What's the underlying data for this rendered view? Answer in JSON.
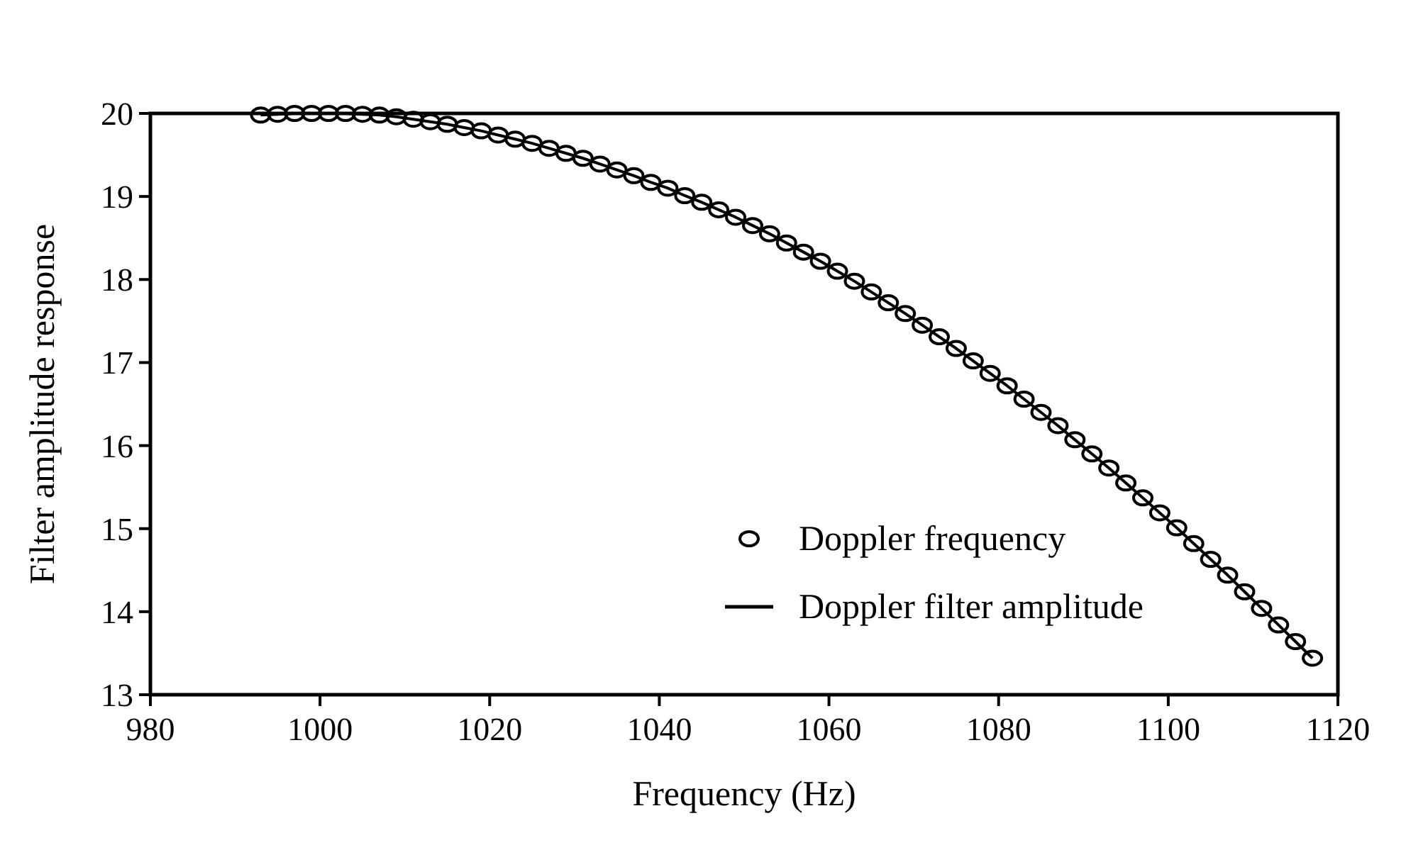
{
  "chart_data": {
    "type": "line",
    "xlabel": "Frequency (Hz)",
    "ylabel": "Filter amplitude response",
    "xlim": [
      980,
      1120
    ],
    "xticks": [
      980,
      1000,
      1020,
      1040,
      1060,
      1080,
      1100,
      1120
    ],
    "ylim": [
      13,
      20
    ],
    "yticks": [
      13,
      14,
      15,
      16,
      17,
      18,
      19,
      20
    ],
    "x": [
      993,
      995,
      997,
      999,
      1001,
      1003,
      1005,
      1007,
      1009,
      1011,
      1013,
      1015,
      1017,
      1019,
      1021,
      1023,
      1025,
      1027,
      1029,
      1031,
      1033,
      1035,
      1037,
      1039,
      1041,
      1043,
      1045,
      1047,
      1049,
      1051,
      1053,
      1055,
      1057,
      1059,
      1061,
      1063,
      1065,
      1067,
      1069,
      1071,
      1073,
      1075,
      1077,
      1079,
      1081,
      1083,
      1085,
      1087,
      1089,
      1091,
      1093,
      1095,
      1097,
      1099,
      1101,
      1103,
      1105,
      1107,
      1109,
      1111,
      1113,
      1115,
      1117
    ],
    "series": [
      {
        "name": "Doppler frequency",
        "type": "scatter",
        "marker": "circle",
        "color": "#000000",
        "values": [
          19.98,
          19.99,
          20,
          20,
          20,
          20,
          19.99,
          19.98,
          19.96,
          19.93,
          19.9,
          19.87,
          19.83,
          19.79,
          19.74,
          19.69,
          19.64,
          19.58,
          19.52,
          19.46,
          19.39,
          19.32,
          19.25,
          19.17,
          19.1,
          19.01,
          18.93,
          18.84,
          18.75,
          18.65,
          18.55,
          18.44,
          18.33,
          18.22,
          18.1,
          17.98,
          17.85,
          17.72,
          17.59,
          17.45,
          17.31,
          17.17,
          17.02,
          16.87,
          16.72,
          16.56,
          16.4,
          16.24,
          16.07,
          15.9,
          15.73,
          15.55,
          15.37,
          15.19,
          15.01,
          14.82,
          14.63,
          14.44,
          14.24,
          14.04,
          13.84,
          13.64,
          13.44
        ]
      },
      {
        "name": "Doppler filter amplitude",
        "line_style": "solid",
        "color": "#000000",
        "values": [
          19.98,
          19.99,
          20,
          20,
          20,
          20,
          19.99,
          19.98,
          19.96,
          19.93,
          19.9,
          19.87,
          19.83,
          19.79,
          19.74,
          19.69,
          19.64,
          19.58,
          19.52,
          19.46,
          19.39,
          19.32,
          19.25,
          19.17,
          19.1,
          19.01,
          18.93,
          18.84,
          18.75,
          18.65,
          18.55,
          18.44,
          18.33,
          18.22,
          18.1,
          17.98,
          17.85,
          17.72,
          17.59,
          17.45,
          17.31,
          17.17,
          17.02,
          16.87,
          16.72,
          16.56,
          16.4,
          16.24,
          16.07,
          15.9,
          15.73,
          15.55,
          15.37,
          15.19,
          15.01,
          14.82,
          14.63,
          14.44,
          14.24,
          14.04,
          13.84,
          13.64,
          13.44
        ]
      }
    ],
    "legend": "bottom right",
    "grid": false
  }
}
